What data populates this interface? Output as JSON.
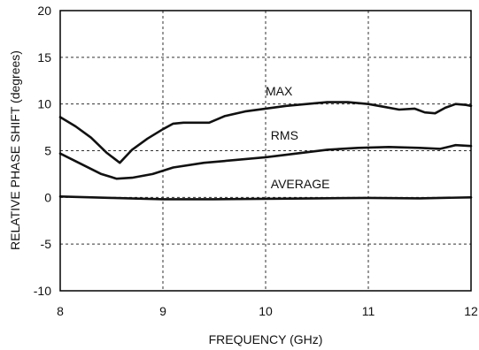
{
  "chart_data": {
    "type": "line",
    "title": "",
    "xlabel": "FREQUENCY (GHz)",
    "ylabel": "RELATIVE PHASE SHIFT  (degrees)",
    "xlim": [
      8,
      12
    ],
    "ylim": [
      -10,
      20
    ],
    "xticks": [
      8,
      9,
      10,
      11,
      12
    ],
    "yticks": [
      -10,
      -5,
      0,
      5,
      10,
      15,
      20
    ],
    "grid": true,
    "series": [
      {
        "name": "MAX",
        "label_at": [
          10.0,
          10.9
        ],
        "x": [
          8.0,
          8.15,
          8.3,
          8.45,
          8.58,
          8.7,
          8.85,
          9.0,
          9.1,
          9.2,
          9.35,
          9.45,
          9.6,
          9.8,
          10.0,
          10.2,
          10.4,
          10.6,
          10.8,
          11.0,
          11.15,
          11.3,
          11.45,
          11.55,
          11.65,
          11.75,
          11.85,
          11.95,
          12.0
        ],
        "y": [
          8.6,
          7.6,
          6.4,
          4.8,
          3.7,
          5.1,
          6.3,
          7.3,
          7.9,
          8.0,
          8.0,
          8.0,
          8.7,
          9.2,
          9.5,
          9.8,
          10.0,
          10.2,
          10.2,
          10.0,
          9.7,
          9.4,
          9.5,
          9.1,
          9.0,
          9.6,
          10.0,
          9.9,
          9.8
        ]
      },
      {
        "name": "RMS",
        "label_at": [
          10.05,
          6.2
        ],
        "x": [
          8.0,
          8.2,
          8.4,
          8.55,
          8.7,
          8.9,
          9.1,
          9.4,
          9.7,
          10.0,
          10.3,
          10.6,
          10.9,
          11.2,
          11.5,
          11.7,
          11.85,
          12.0
        ],
        "y": [
          4.7,
          3.6,
          2.5,
          2.0,
          2.1,
          2.5,
          3.2,
          3.7,
          4.0,
          4.3,
          4.7,
          5.1,
          5.3,
          5.4,
          5.3,
          5.2,
          5.6,
          5.5
        ]
      },
      {
        "name": "AVERAGE",
        "label_at": [
          10.05,
          1.0
        ],
        "x": [
          8.0,
          8.5,
          9.0,
          9.5,
          10.0,
          10.5,
          11.0,
          11.5,
          12.0
        ],
        "y": [
          0.1,
          -0.05,
          -0.2,
          -0.2,
          -0.15,
          -0.1,
          -0.05,
          -0.1,
          0.0
        ]
      }
    ]
  }
}
